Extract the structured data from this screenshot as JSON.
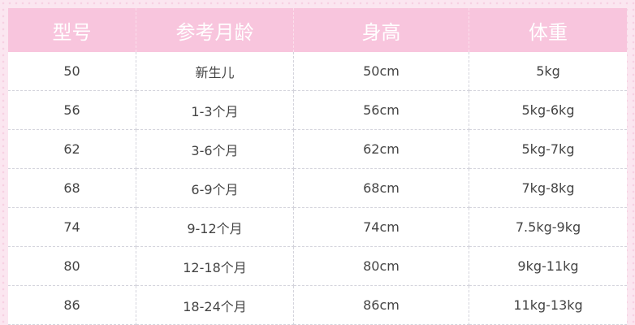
{
  "table": {
    "header": [
      "型号",
      "参考月龄",
      "身高",
      "体重"
    ],
    "rows": [
      [
        "50",
        "新生儿",
        "50cm",
        "5kg"
      ],
      [
        "56",
        "1-3个月",
        "56cm",
        "5kg-6kg"
      ],
      [
        "62",
        "3-6个月",
        "62cm",
        "5kg-7kg"
      ],
      [
        "68",
        "6-9个月",
        "68cm",
        "7kg-8kg"
      ],
      [
        "74",
        "9-12个月",
        "74cm",
        "7.5kg-9kg"
      ],
      [
        "80",
        "12-18个月",
        "80cm",
        "9kg-11kg"
      ],
      [
        "86",
        "18-24个月",
        "86cm",
        "11kg-13kg"
      ]
    ]
  }
}
